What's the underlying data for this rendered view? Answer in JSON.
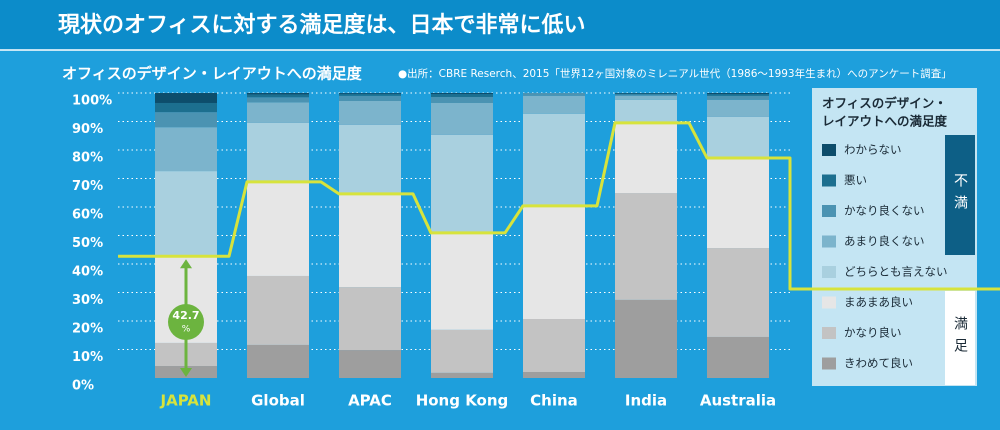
{
  "chart_data": {
    "type": "stacked_bar",
    "title": "現状のオフィスに対する満足度は、日本で非常に低い",
    "subtitle": "オフィスのデザイン・レイアウトへの満足度",
    "source": "●出所：CBRE Reserch、2015「世界12ヶ国対象のミレニアル世代（1986～1993年生まれ）へのアンケート調査」",
    "categories": [
      "JAPAN",
      "Global",
      "APAC",
      "Hong Kong",
      "China",
      "India",
      "Australia"
    ],
    "highlight_category": "JAPAN",
    "highlight_color": "#d7e33c",
    "line_color": "#d7e33c",
    "annotation": {
      "text": "42.7",
      "unit": "%"
    },
    "series": [
      {
        "name": "きわめて良い",
        "color": "#9e9e9e",
        "values": [
          4.2,
          11.6,
          9.8,
          1.8,
          2.1,
          27.4,
          14.4
        ]
      },
      {
        "name": "かなり良い",
        "color": "#c3c3c3",
        "values": [
          8.1,
          24.2,
          22.1,
          15.1,
          18.6,
          37.5,
          31.2
        ]
      },
      {
        "name": "まあまあ良い",
        "color": "#e6e6e6",
        "values": [
          30.4,
          33.0,
          32.7,
          34.0,
          39.7,
          24.6,
          31.6
        ]
      },
      {
        "name": "どちらとも言えない",
        "color": "#a9d0df",
        "values": [
          29.9,
          20.7,
          24.2,
          34.4,
          32.3,
          8.1,
          14.4
        ]
      },
      {
        "name": "あまり良くない",
        "color": "#7cb4cc",
        "values": [
          15.4,
          7.2,
          8.4,
          11.2,
          6.3,
          1.4,
          6.0
        ]
      },
      {
        "name": "かなり良くない",
        "color": "#4b93b2",
        "values": [
          5.3,
          1.8,
          1.8,
          2.1,
          1.0,
          0.5,
          1.4
        ]
      },
      {
        "name": "悪い",
        "color": "#1c6f8f",
        "values": [
          3.2,
          1.0,
          0.7,
          1.0,
          0,
          0.3,
          0.6
        ]
      },
      {
        "name": "わからない",
        "color": "#0d4d6b",
        "values": [
          3.5,
          0.5,
          0.3,
          0.4,
          0,
          0.2,
          0.4
        ]
      }
    ],
    "satisfied_series_count": 3,
    "legend_title": [
      "オフィスのデザイン・",
      "レイアウトへの満足度"
    ],
    "legend_groups": [
      {
        "label": "不満"
      },
      {
        "label": "満足"
      }
    ],
    "ylim": [
      0,
      100
    ],
    "yticks": [
      {
        "value": 0,
        "label": "0%"
      },
      {
        "value": 10,
        "label": "10%"
      },
      {
        "value": 20,
        "label": "20%"
      },
      {
        "value": 30,
        "label": "30%"
      },
      {
        "value": 40,
        "label": "40%"
      },
      {
        "value": 50,
        "label": "50%"
      },
      {
        "value": 60,
        "label": "60%"
      },
      {
        "value": 70,
        "label": "70%"
      },
      {
        "value": 80,
        "label": "80%"
      },
      {
        "value": 90,
        "label": "90%"
      },
      {
        "value": 100,
        "label": "100%"
      }
    ],
    "grid": true
  }
}
